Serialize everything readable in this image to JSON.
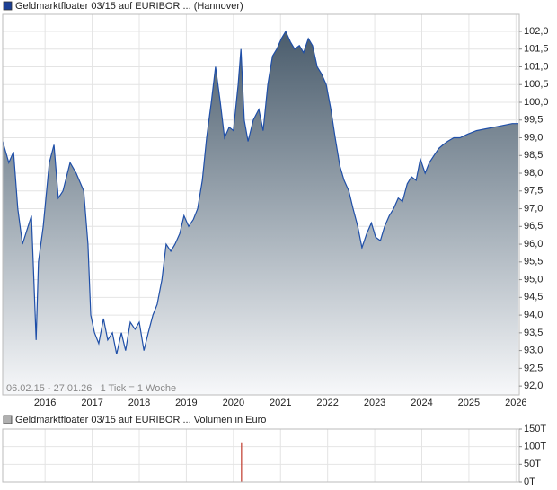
{
  "chart_data": [
    {
      "type": "area",
      "legend": "Geldmarktfloater 03/15 auf EURIBOR ... (Hannover)",
      "note": "06.02.15 - 27.01.26   1 Tick = 1 Woche",
      "color": "#1f4fa8",
      "legend_color": "#1c3f94",
      "x": [
        2015.1,
        2015.23,
        2015.33,
        2015.42,
        2015.52,
        2015.71,
        2015.81,
        2015.86,
        2015.96,
        2016.09,
        2016.19,
        2016.28,
        2016.38,
        2016.53,
        2016.66,
        2016.82,
        2016.91,
        2016.97,
        2017.05,
        2017.14,
        2017.24,
        2017.33,
        2017.43,
        2017.52,
        2017.62,
        2017.71,
        2017.81,
        2017.91,
        2018.0,
        2018.1,
        2018.19,
        2018.29,
        2018.38,
        2018.48,
        2018.57,
        2018.67,
        2018.76,
        2018.86,
        2018.95,
        2019.05,
        2019.15,
        2019.24,
        2019.34,
        2019.43,
        2019.53,
        2019.62,
        2019.72,
        2019.81,
        2019.91,
        2020.0,
        2020.1,
        2020.16,
        2020.23,
        2020.31,
        2020.42,
        2020.54,
        2020.63,
        2020.73,
        2020.83,
        2020.92,
        2021.02,
        2021.11,
        2021.21,
        2021.3,
        2021.4,
        2021.49,
        2021.59,
        2021.68,
        2021.78,
        2021.87,
        2021.97,
        2022.07,
        2022.16,
        2022.26,
        2022.35,
        2022.45,
        2022.54,
        2022.64,
        2022.73,
        2022.83,
        2022.93,
        2023.02,
        2023.12,
        2023.21,
        2023.31,
        2023.4,
        2023.5,
        2023.59,
        2023.69,
        2023.78,
        2023.88,
        2023.97,
        2024.07,
        2024.16,
        2024.26,
        2024.36,
        2024.45,
        2024.55,
        2024.68,
        2024.81,
        2024.97,
        2025.16,
        2025.35,
        2025.54,
        2025.73,
        2025.92,
        2026.05
      ],
      "values": [
        98.9,
        98.3,
        98.6,
        97.0,
        96.0,
        96.8,
        93.3,
        95.5,
        96.5,
        98.3,
        98.8,
        97.3,
        97.5,
        98.3,
        98.0,
        97.5,
        96.0,
        94.0,
        93.5,
        93.2,
        93.9,
        93.3,
        93.5,
        92.9,
        93.5,
        93.0,
        93.8,
        93.6,
        93.8,
        93.0,
        93.5,
        94.0,
        94.3,
        95.0,
        96.0,
        95.8,
        96.0,
        96.3,
        96.8,
        96.5,
        96.7,
        97.0,
        97.8,
        99.0,
        100.0,
        101.0,
        100.0,
        99.0,
        99.3,
        99.2,
        100.5,
        101.5,
        99.5,
        98.9,
        99.5,
        99.8,
        99.2,
        100.5,
        101.3,
        101.5,
        101.8,
        102.0,
        101.7,
        101.5,
        101.6,
        101.4,
        101.8,
        101.6,
        101.0,
        100.8,
        100.5,
        99.8,
        99.0,
        98.2,
        97.8,
        97.5,
        97.0,
        96.5,
        95.9,
        96.3,
        96.6,
        96.2,
        96.1,
        96.5,
        96.8,
        97.0,
        97.3,
        97.2,
        97.7,
        97.9,
        97.8,
        98.4,
        98.0,
        98.3,
        98.5,
        98.7,
        98.8,
        98.9,
        99.0,
        99.0,
        99.1,
        99.2,
        99.25,
        99.3,
        99.35,
        99.4,
        99.4
      ],
      "xlim": [
        2015.1,
        2026.07
      ],
      "xticks": [
        2016,
        2017,
        2018,
        2019,
        2020,
        2021,
        2022,
        2023,
        2024,
        2025,
        2026
      ],
      "ylim": [
        91.75,
        102.48
      ],
      "yticks": [
        {
          "value": 92.0,
          "label": "92,0"
        },
        {
          "value": 92.5,
          "label": "92,5"
        },
        {
          "value": 93.0,
          "label": "93,0"
        },
        {
          "value": 93.5,
          "label": "93,5"
        },
        {
          "value": 94.0,
          "label": "94,0"
        },
        {
          "value": 94.5,
          "label": "94,5"
        },
        {
          "value": 95.0,
          "label": "95,0"
        },
        {
          "value": 95.5,
          "label": "95,5"
        },
        {
          "value": 96.0,
          "label": "96,0"
        },
        {
          "value": 96.5,
          "label": "96,5"
        },
        {
          "value": 97.0,
          "label": "97,0"
        },
        {
          "value": 97.5,
          "label": "97,5"
        },
        {
          "value": 98.0,
          "label": "98,0"
        },
        {
          "value": 98.5,
          "label": "98,5"
        },
        {
          "value": 99.0,
          "label": "99,0"
        },
        {
          "value": 99.5,
          "label": "99,5"
        },
        {
          "value": 100.0,
          "label": "100,0"
        },
        {
          "value": 100.5,
          "label": "100,5"
        },
        {
          "value": 101.0,
          "label": "101,0"
        },
        {
          "value": 101.5,
          "label": "101,5"
        },
        {
          "value": 102.0,
          "label": "102,0"
        }
      ],
      "grid": true
    },
    {
      "type": "bar",
      "legend": "Geldmarktfloater 03/15 auf EURIBOR ... Volumen in Euro",
      "color": "#c0392b",
      "legend_color": "#b0b0b0",
      "x": [
        2020.17
      ],
      "values": [
        110000
      ],
      "xlim": [
        2015.1,
        2026.07
      ],
      "ylim": [
        0,
        150000
      ],
      "yticks": [
        {
          "value": 0,
          "label": "0T"
        },
        {
          "value": 50000,
          "label": "50T"
        },
        {
          "value": 100000,
          "label": "100T"
        },
        {
          "value": 150000,
          "label": "150T"
        }
      ],
      "grid": true
    }
  ]
}
